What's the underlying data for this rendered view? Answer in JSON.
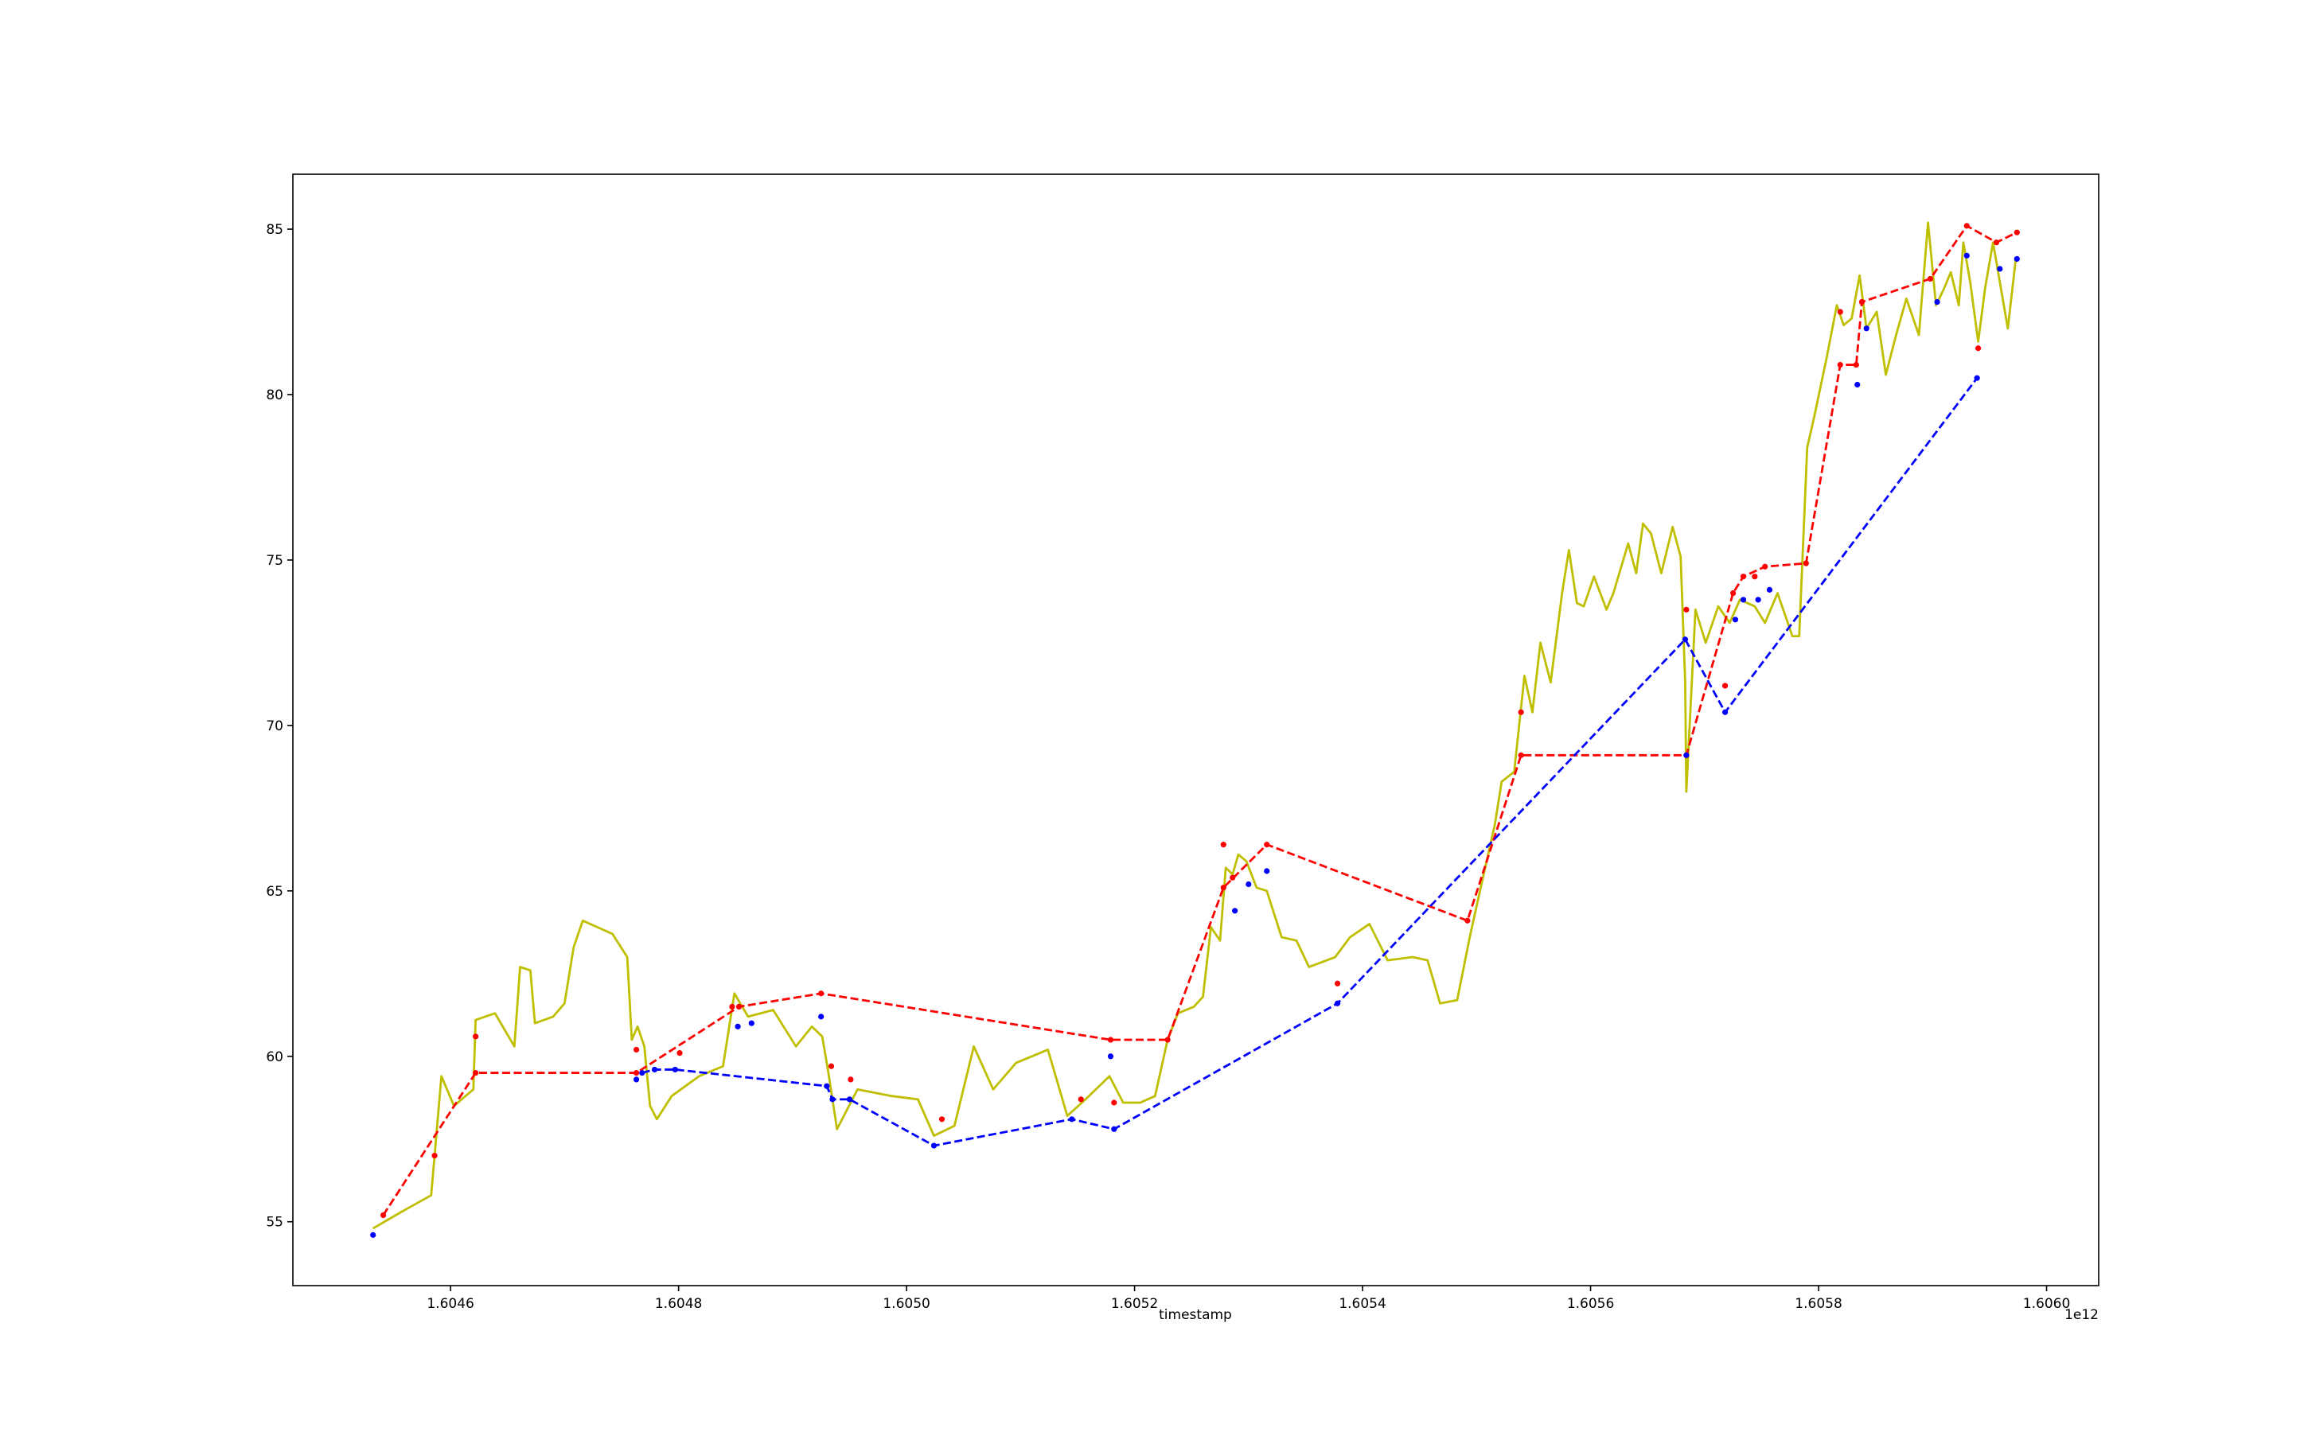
{
  "chart_data": {
    "type": "line",
    "xlabel": "timestamp",
    "x_offset_label": "1e12",
    "xlim": [
      1604461700000.0,
      1606045700000.0
    ],
    "xticks": [
      {
        "value": 1604600000000.0,
        "label": "1.6046"
      },
      {
        "value": 1604800000000.0,
        "label": "1.6048"
      },
      {
        "value": 1605000000000.0,
        "label": "1.6050"
      },
      {
        "value": 1605200000000.0,
        "label": "1.6052"
      },
      {
        "value": 1605400000000.0,
        "label": "1.6054"
      },
      {
        "value": 1605600000000.0,
        "label": "1.6056"
      },
      {
        "value": 1605800000000.0,
        "label": "1.6058"
      },
      {
        "value": 1606000000000.0,
        "label": "1.6060"
      }
    ],
    "ylim": [
      53.07,
      86.66
    ],
    "yticks": [
      55,
      60,
      65,
      70,
      75,
      80,
      85
    ],
    "grid": false,
    "series": [
      {
        "color": "#bfbf00",
        "linestyle": "solid",
        "marker": "none",
        "x": [
          1604532000000.0,
          1604557000000.0,
          1604583000000.0,
          1604592000000.0,
          1604603000000.0,
          1604620000000.0,
          1604622000000.0,
          1604639000000.0,
          1604656000000.0,
          1604661000000.0,
          1604670000000.0,
          1604674000000.0,
          1604690000000.0,
          1604700000000.0,
          1604708000000.0,
          1604716000000.0,
          1604742000000.0,
          1604755000000.0,
          1604759000000.0,
          1604764000000.0,
          1604770000000.0,
          1604775000000.0,
          1604781000000.0,
          1604794000000.0,
          1604818000000.0,
          1604839000000.0,
          1604849000000.0,
          1604861000000.0,
          1604883000000.0,
          1604903000000.0,
          1604917000000.0,
          1604926000000.0,
          1604931000000.0,
          1604939000000.0,
          1604957000000.0,
          1604987000000.0,
          1605010000000.0,
          1605024000000.0,
          1605042000000.0,
          1605059000000.0,
          1605076000000.0,
          1605096000000.0,
          1605124000000.0,
          1605141000000.0,
          1605157000000.0,
          1605178000000.0,
          1605190000000.0,
          1605205000000.0,
          1605218000000.0,
          1605229000000.0,
          1605238000000.0,
          1605252000000.0,
          1605260000000.0,
          1605267000000.0,
          1605275000000.0,
          1605280000000.0,
          1605286000000.0,
          1605291000000.0,
          1605298000000.0,
          1605307000000.0,
          1605316000000.0,
          1605329000000.0,
          1605342000000.0,
          1605353000000.0,
          1605376000000.0,
          1605389000000.0,
          1605406000000.0,
          1605422000000.0,
          1605444000000.0,
          1605457000000.0,
          1605468000000.0,
          1605483000000.0,
          1605494000000.0,
          1605503000000.0,
          1605516000000.0,
          1605522000000.0,
          1605533000000.0,
          1605542000000.0,
          1605549000000.0,
          1605556000000.0,
          1605565000000.0,
          1605575000000.0,
          1605581000000.0,
          1605588000000.0,
          1605594000000.0,
          1605603000000.0,
          1605614000000.0,
          1605620000000.0,
          1605633000000.0,
          1605640000000.0,
          1605646000000.0,
          1605653000000.0,
          1605662000000.0,
          1605672000000.0,
          1605679000000.0,
          1605683000000.0,
          1605684000000.0,
          1605692000000.0,
          1605701000000.0,
          1605712000000.0,
          1605722000000.0,
          1605731000000.0,
          1605744000000.0,
          1605753000000.0,
          1605764000000.0,
          1605777000000.0,
          1605783000000.0,
          1605790000000.0,
          1605796000000.0,
          1605807000000.0,
          1605816000000.0,
          1605822000000.0,
          1605829000000.0,
          1605836000000.0,
          1605842000000.0,
          1605851000000.0,
          1605859000000.0,
          1605868000000.0,
          1605877000000.0,
          1605888000000.0,
          1605896000000.0,
          1605903000000.0,
          1605910000000.0,
          1605916000000.0,
          1605923000000.0,
          1605927000000.0,
          1605933000000.0,
          1605940000000.0,
          1605946000000.0,
          1605953000000.0,
          1605959000000.0,
          1605966000000.0,
          1605973000000.0
        ],
        "values": [
          54.8,
          55.3,
          55.8,
          59.4,
          58.5,
          59.0,
          61.1,
          61.3,
          60.3,
          62.7,
          62.6,
          61.0,
          61.2,
          61.6,
          63.3,
          64.1,
          63.7,
          63.0,
          60.5,
          60.9,
          60.3,
          58.5,
          58.1,
          58.8,
          59.4,
          59.7,
          61.9,
          61.2,
          61.4,
          60.3,
          60.9,
          60.6,
          59.6,
          57.8,
          59.0,
          58.8,
          58.7,
          57.6,
          57.9,
          60.3,
          59.0,
          59.8,
          60.2,
          58.2,
          58.7,
          59.4,
          58.6,
          58.6,
          58.8,
          60.5,
          61.3,
          61.5,
          61.8,
          63.9,
          63.5,
          65.7,
          65.5,
          66.1,
          65.9,
          65.1,
          65.0,
          63.6,
          63.5,
          62.7,
          63.0,
          63.6,
          64.0,
          62.9,
          63.0,
          62.9,
          61.6,
          61.7,
          63.6,
          65.0,
          67.0,
          68.3,
          68.6,
          71.5,
          70.4,
          72.5,
          71.3,
          74.0,
          75.3,
          73.7,
          73.6,
          74.5,
          73.5,
          74.0,
          75.5,
          74.6,
          76.1,
          75.8,
          74.6,
          76.0,
          75.1,
          71.3,
          68.0,
          73.5,
          72.5,
          73.6,
          73.1,
          73.8,
          73.6,
          73.1,
          74.0,
          72.7,
          72.7,
          78.4,
          79.3,
          81.1,
          82.7,
          82.1,
          82.3,
          83.6,
          82.0,
          82.5,
          80.6,
          81.8,
          82.9,
          81.8,
          85.2,
          82.7,
          83.2,
          83.7,
          82.7,
          84.6,
          83.4,
          81.6,
          83.2,
          84.6,
          83.4,
          82.0,
          84.1
        ]
      },
      {
        "color": "#ff0000",
        "linestyle": "dashed",
        "marker": "dot",
        "x": [
          1604541000000.0,
          1604622000000.0,
          1604763000000.0,
          1604853000000.0,
          1604925000000.0,
          1605179000000.0,
          1605229000000.0,
          1605278000000.0,
          1605316000000.0,
          1605492000000.0,
          1605539000000.0,
          1605684000000.0,
          1605725000000.0,
          1605734000000.0,
          1605753000000.0,
          1605789000000.0,
          1605819000000.0,
          1605833000000.0,
          1605838000000.0,
          1605898000000.0,
          1605930000000.0,
          1605956000000.0,
          1605974000000.0
        ],
        "values": [
          55.2,
          59.5,
          59.5,
          61.5,
          61.9,
          60.5,
          60.5,
          65.1,
          66.4,
          64.1,
          69.1,
          69.1,
          74.0,
          74.5,
          74.8,
          74.9,
          80.9,
          80.9,
          82.8,
          83.5,
          85.1,
          84.6,
          84.9
        ]
      },
      {
        "color": "#0000ff",
        "linestyle": "dashed",
        "marker": "dot",
        "x": [
          1604768000000.0,
          1604779000000.0,
          1604797000000.0,
          1604930000000.0,
          1604935000000.0,
          1604950000000.0,
          1605024000000.0,
          1605145000000.0,
          1605182000000.0,
          1605378000000.0,
          1605683000000.0,
          1605718000000.0,
          1605939000000.0
        ],
        "values": [
          59.5,
          59.6,
          59.6,
          59.1,
          58.7,
          58.7,
          57.3,
          58.1,
          57.8,
          61.6,
          72.6,
          70.4,
          80.5
        ]
      },
      {
        "color": "#ff0000",
        "linestyle": "none",
        "marker": "dot",
        "x": [
          1604586000000.0,
          1604622000000.0,
          1604763000000.0,
          1604801000000.0,
          1604847000000.0,
          1604934000000.0,
          1604951000000.0,
          1605031000000.0,
          1605153000000.0,
          1605182000000.0,
          1605278000000.0,
          1605286000000.0,
          1605378000000.0,
          1605539000000.0,
          1605684000000.0,
          1605718000000.0,
          1605744000000.0,
          1605819000000.0,
          1605940000000.0
        ],
        "values": [
          57.0,
          60.6,
          60.2,
          60.1,
          61.5,
          59.7,
          59.3,
          58.1,
          58.7,
          58.6,
          66.4,
          65.4,
          62.2,
          70.4,
          73.5,
          71.2,
          74.5,
          82.5,
          81.4
        ]
      },
      {
        "color": "#0000ff",
        "linestyle": "none",
        "marker": "dot",
        "x": [
          1604532000000.0,
          1604763000000.0,
          1604852000000.0,
          1604864000000.0,
          1604925000000.0,
          1605179000000.0,
          1605288000000.0,
          1605300000000.0,
          1605316000000.0,
          1605684000000.0,
          1605727000000.0,
          1605734000000.0,
          1605747000000.0,
          1605757000000.0,
          1605834000000.0,
          1605842000000.0,
          1605904000000.0,
          1605930000000.0,
          1605959000000.0,
          1605974000000.0
        ],
        "values": [
          54.6,
          59.3,
          60.9,
          61.0,
          61.2,
          60.0,
          64.4,
          65.2,
          65.6,
          69.1,
          73.2,
          73.8,
          73.8,
          74.1,
          80.3,
          82.0,
          82.8,
          84.2,
          83.8,
          84.1
        ]
      }
    ]
  }
}
